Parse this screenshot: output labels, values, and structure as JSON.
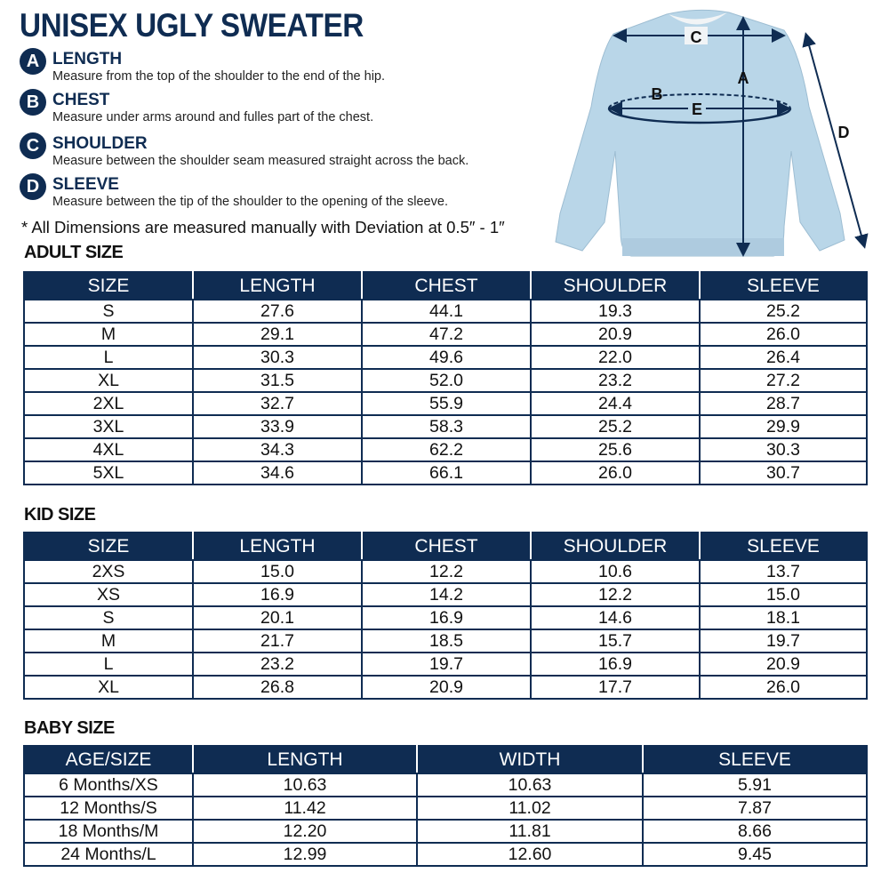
{
  "title": "UNISEX UGLY SWEATER",
  "measurements": [
    {
      "letter": "A",
      "name": "LENGTH",
      "description": "Measure from the top of the shoulder to the end of the hip."
    },
    {
      "letter": "B",
      "name": "CHEST",
      "description": "Measure under arms around and fulles part of the chest."
    },
    {
      "letter": "C",
      "name": "SHOULDER",
      "description": "Measure between the shoulder seam measured straight across the back."
    },
    {
      "letter": "D",
      "name": "SLEEVE",
      "description": "Measure between the tip of the shoulder to the opening of the sleeve."
    }
  ],
  "note": "* All Dimensions are measured manually with Deviation at 0.5″ - 1″",
  "diagram_labels": {
    "a": "A",
    "b": "B",
    "c": "C",
    "d": "D",
    "e": "E"
  },
  "colors": {
    "navy": "#0f2c52",
    "sweater": "#b9d6e8"
  },
  "tables": [
    {
      "title": "ADULT SIZE",
      "headers": [
        "SIZE",
        "LENGTH",
        "CHEST",
        "SHOULDER",
        "SLEEVE"
      ],
      "rows": [
        [
          "S",
          "27.6",
          "44.1",
          "19.3",
          "25.2"
        ],
        [
          "M",
          "29.1",
          "47.2",
          "20.9",
          "26.0"
        ],
        [
          "L",
          "30.3",
          "49.6",
          "22.0",
          "26.4"
        ],
        [
          "XL",
          "31.5",
          "52.0",
          "23.2",
          "27.2"
        ],
        [
          "2XL",
          "32.7",
          "55.9",
          "24.4",
          "28.7"
        ],
        [
          "3XL",
          "33.9",
          "58.3",
          "25.2",
          "29.9"
        ],
        [
          "4XL",
          "34.3",
          "62.2",
          "25.6",
          "30.3"
        ],
        [
          "5XL",
          "34.6",
          "66.1",
          "26.0",
          "30.7"
        ]
      ]
    },
    {
      "title": "KID SIZE",
      "headers": [
        "SIZE",
        "LENGTH",
        "CHEST",
        "SHOULDER",
        "SLEEVE"
      ],
      "rows": [
        [
          "2XS",
          "15.0",
          "12.2",
          "10.6",
          "13.7"
        ],
        [
          "XS",
          "16.9",
          "14.2",
          "12.2",
          "15.0"
        ],
        [
          "S",
          "20.1",
          "16.9",
          "14.6",
          "18.1"
        ],
        [
          "M",
          "21.7",
          "18.5",
          "15.7",
          "19.7"
        ],
        [
          "L",
          "23.2",
          "19.7",
          "16.9",
          "20.9"
        ],
        [
          "XL",
          "26.8",
          "20.9",
          "17.7",
          "26.0"
        ]
      ]
    },
    {
      "title": "BABY SIZE",
      "headers": [
        "AGE/SIZE",
        "LENGTH",
        "WIDTH",
        "SLEEVE"
      ],
      "rows": [
        [
          "6 Months/XS",
          "10.63",
          "10.63",
          "5.91"
        ],
        [
          "12 Months/S",
          "11.42",
          "11.02",
          "7.87"
        ],
        [
          "18 Months/M",
          "12.20",
          "11.81",
          "8.66"
        ],
        [
          "24 Months/L",
          "12.99",
          "12.60",
          "9.45"
        ]
      ]
    }
  ]
}
